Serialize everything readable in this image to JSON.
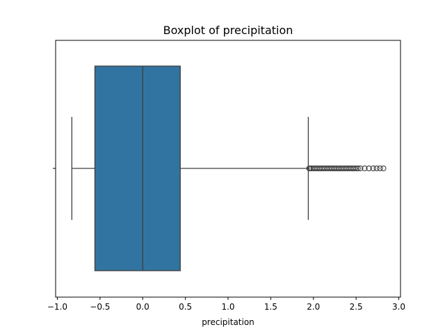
{
  "chart_data": {
    "type": "box",
    "title": "Boxplot of precipitation",
    "xlabel": "precipitation",
    "ylabel": "",
    "xlim": [
      -1.02,
      3.02
    ],
    "xticks": [
      -1.0,
      -0.5,
      0.0,
      0.5,
      1.0,
      1.5,
      2.0,
      2.5,
      3.0
    ],
    "xtick_labels": [
      "−1.0",
      "−0.5",
      "0.0",
      "0.5",
      "1.0",
      "1.5",
      "2.0",
      "2.5",
      "3.0"
    ],
    "grid": false,
    "box": {
      "whisker_low": -0.83,
      "q1": -0.56,
      "median": 0.0,
      "q3": 0.44,
      "whisker_high": 1.94,
      "color": "#3274a1",
      "edge_color": "#3d3d3d"
    },
    "outliers": [
      1.95,
      1.96,
      1.98,
      2.0,
      2.02,
      2.04,
      2.06,
      2.08,
      2.1,
      2.12,
      2.14,
      2.16,
      2.18,
      2.2,
      2.22,
      2.24,
      2.26,
      2.28,
      2.3,
      2.32,
      2.34,
      2.36,
      2.38,
      2.4,
      2.42,
      2.44,
      2.46,
      2.48,
      2.5,
      2.52,
      2.55,
      2.6,
      2.65,
      2.7,
      2.74,
      2.78,
      2.82
    ]
  }
}
